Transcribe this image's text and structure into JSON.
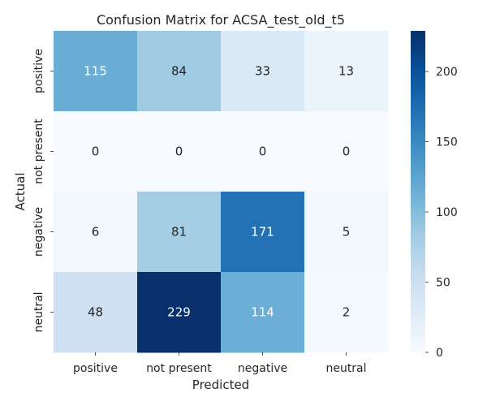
{
  "chart_data": {
    "type": "heatmap",
    "title": "Confusion Matrix for ACSA_test_old_t5",
    "xlabel": "Predicted",
    "ylabel": "Actual",
    "x_categories": [
      "positive",
      "not present",
      "negative",
      "neutral"
    ],
    "y_categories": [
      "positive",
      "not present",
      "negative",
      "neutral"
    ],
    "values": [
      [
        115,
        84,
        33,
        13
      ],
      [
        0,
        0,
        0,
        0
      ],
      [
        6,
        81,
        171,
        5
      ],
      [
        48,
        229,
        114,
        2
      ]
    ],
    "colorbar": {
      "min": 0,
      "max": 229,
      "ticks": [
        0,
        50,
        100,
        150,
        200
      ],
      "colormap": "Blues",
      "low_color": "#f7fbff",
      "high_color": "#08306b"
    },
    "grid": false
  }
}
